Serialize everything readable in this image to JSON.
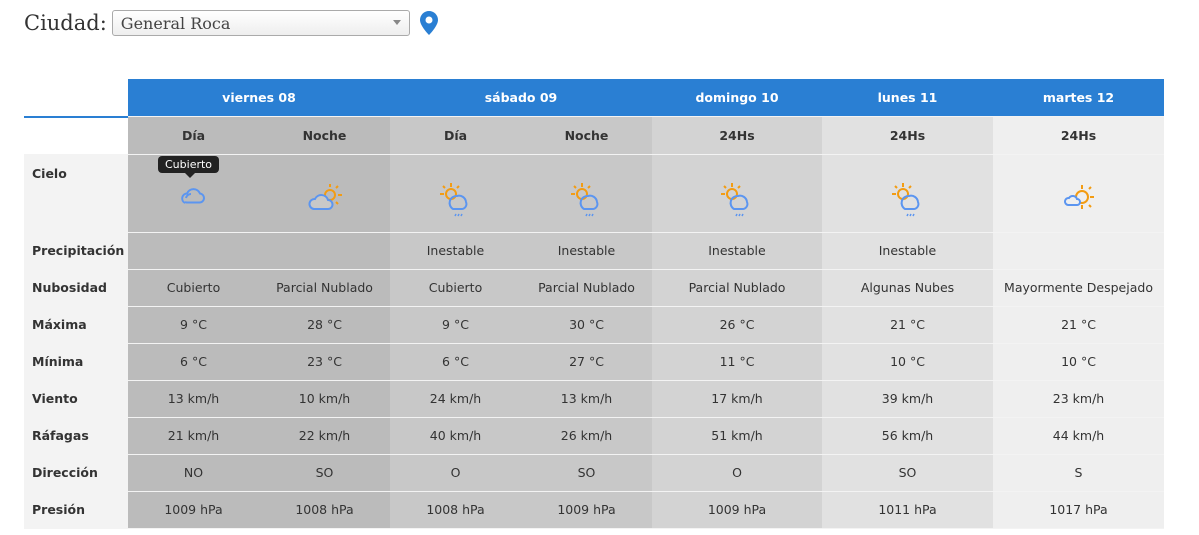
{
  "header": {
    "label": "Ciudad:",
    "selected_city": "General Roca"
  },
  "tooltip": "Cubierto",
  "days": [
    "viernes 08",
    "sábado 09",
    "domingo 10",
    "lunes 11",
    "martes 12"
  ],
  "periods": [
    "Día",
    "Noche",
    "Día",
    "Noche",
    "24Hs",
    "24Hs",
    "24Hs"
  ],
  "colors": {
    "accent": "#2a7fd3",
    "sun": "#f39c12",
    "cloud": "#5b95f0"
  },
  "rows": [
    {
      "label": "Cielo",
      "icons": [
        "cloud-icon",
        "partly-cloudy-icon",
        "rain-sun-icon",
        "rain-sun-icon",
        "rain-sun-icon",
        "rain-sun-icon",
        "mostly-sunny-icon"
      ]
    },
    {
      "label": "Precipitación",
      "values": [
        "",
        "",
        "Inestable",
        "Inestable",
        "Inestable",
        "Inestable",
        ""
      ]
    },
    {
      "label": "Nubosidad",
      "values": [
        "Cubierto",
        "Parcial Nublado",
        "Cubierto",
        "Parcial Nublado",
        "Parcial Nublado",
        "Algunas Nubes",
        "Mayormente Despejado"
      ]
    },
    {
      "label": "Máxima",
      "values": [
        "9 °C",
        "28 °C",
        "9 °C",
        "30 °C",
        "26 °C",
        "21 °C",
        "21 °C"
      ]
    },
    {
      "label": "Mínima",
      "values": [
        "6 °C",
        "23 °C",
        "6 °C",
        "27 °C",
        "11 °C",
        "10 °C",
        "10 °C"
      ]
    },
    {
      "label": "Viento",
      "values": [
        "13 km/h",
        "10 km/h",
        "24 km/h",
        "13 km/h",
        "17 km/h",
        "39 km/h",
        "23 km/h"
      ]
    },
    {
      "label": "Ráfagas",
      "values": [
        "21 km/h",
        "22 km/h",
        "40 km/h",
        "26 km/h",
        "51 km/h",
        "56 km/h",
        "44 km/h"
      ]
    },
    {
      "label": "Dirección",
      "values": [
        "NO",
        "SO",
        "O",
        "SO",
        "O",
        "SO",
        "S"
      ]
    },
    {
      "label": "Presión",
      "values": [
        "1009 hPa",
        "1008 hPa",
        "1008 hPa",
        "1009 hPa",
        "1009 hPa",
        "1011 hPa",
        "1017 hPa"
      ]
    }
  ]
}
